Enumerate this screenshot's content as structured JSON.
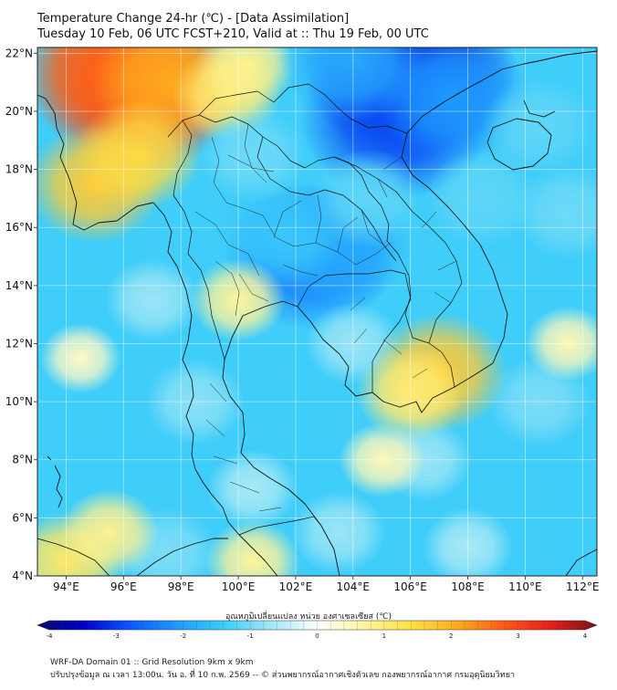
{
  "header": {
    "title_line1": "Temperature Change 24-hr (℃) - [Data Assimilation]",
    "title_line2": "Tuesday 10 Feb, 06 UTC FCST+210, Valid at :: Thu 19 Feb, 00 UTC"
  },
  "map": {
    "lon_range": [
      93,
      112.5
    ],
    "lat_range": [
      4,
      22.2
    ],
    "lon_ticks": [
      {
        "value": 94,
        "label": "94°E"
      },
      {
        "value": 96,
        "label": "96°E"
      },
      {
        "value": 98,
        "label": "98°E"
      },
      {
        "value": 100,
        "label": "100°E"
      },
      {
        "value": 102,
        "label": "102°E"
      },
      {
        "value": 104,
        "label": "104°E"
      },
      {
        "value": 106,
        "label": "106°E"
      },
      {
        "value": 108,
        "label": "108°E"
      },
      {
        "value": 110,
        "label": "110°E"
      },
      {
        "value": 112,
        "label": "112°E"
      }
    ],
    "lat_ticks": [
      {
        "value": 4,
        "label": "4°N"
      },
      {
        "value": 6,
        "label": "6°N"
      },
      {
        "value": 8,
        "label": "8°N"
      },
      {
        "value": 10,
        "label": "10°N"
      },
      {
        "value": 12,
        "label": "12°N"
      },
      {
        "value": 14,
        "label": "14°N"
      },
      {
        "value": 16,
        "label": "16°N"
      },
      {
        "value": 18,
        "label": "18°N"
      },
      {
        "value": 20,
        "label": "20°N"
      },
      {
        "value": 22,
        "label": "22°N"
      }
    ],
    "field_blobs": [
      {
        "lon": 96.5,
        "lat": 20.8,
        "value": 3.0
      },
      {
        "lon": 95.5,
        "lat": 21.5,
        "value": 2.6
      },
      {
        "lon": 97.6,
        "lat": 21.0,
        "value": 2.0
      },
      {
        "lon": 95.0,
        "lat": 17.5,
        "value": 1.6
      },
      {
        "lon": 96.5,
        "lat": 18.5,
        "value": 1.4
      },
      {
        "lon": 99.6,
        "lat": 20.6,
        "value": 1.0
      },
      {
        "lon": 100.3,
        "lat": 21.6,
        "value": 0.8
      },
      {
        "lon": 106.0,
        "lat": 21.5,
        "value": -3.2
      },
      {
        "lon": 105.5,
        "lat": 19.8,
        "value": -2.8
      },
      {
        "lon": 107.5,
        "lat": 20.5,
        "value": -2.0
      },
      {
        "lon": 104.0,
        "lat": 21.8,
        "value": -1.8
      },
      {
        "lon": 102.5,
        "lat": 15.0,
        "value": -2.3
      },
      {
        "lon": 103.5,
        "lat": 15.4,
        "value": -1.8
      },
      {
        "lon": 101.5,
        "lat": 15.8,
        "value": -1.4
      },
      {
        "lon": 100.5,
        "lat": 18.5,
        "value": -1.0
      },
      {
        "lon": 104.5,
        "lat": 17.0,
        "value": -1.1
      },
      {
        "lon": 108.5,
        "lat": 17.0,
        "value": -1.1
      },
      {
        "lon": 110.5,
        "lat": 19.5,
        "value": -1.1
      },
      {
        "lon": 111.5,
        "lat": 16.5,
        "value": -1.0
      },
      {
        "lon": 98.5,
        "lat": 10.0,
        "value": -0.8
      },
      {
        "lon": 97.0,
        "lat": 13.5,
        "value": -0.7
      },
      {
        "lon": 104.0,
        "lat": 12.0,
        "value": -0.7
      },
      {
        "lon": 106.5,
        "lat": 8.0,
        "value": -0.7
      },
      {
        "lon": 110.5,
        "lat": 10.0,
        "value": -0.9
      },
      {
        "lon": 97.5,
        "lat": 4.8,
        "value": -0.9
      },
      {
        "lon": 103.5,
        "lat": 5.5,
        "value": -0.7
      },
      {
        "lon": 100.5,
        "lat": 7.0,
        "value": -0.6
      },
      {
        "lon": 107.0,
        "lat": 11.0,
        "value": 1.6
      },
      {
        "lon": 106.0,
        "lat": 10.3,
        "value": 1.0
      },
      {
        "lon": 100.0,
        "lat": 13.5,
        "value": 0.7
      },
      {
        "lon": 94.0,
        "lat": 4.5,
        "value": 1.1
      },
      {
        "lon": 95.5,
        "lat": 5.5,
        "value": 0.8
      },
      {
        "lon": 100.5,
        "lat": 4.5,
        "value": 0.7
      },
      {
        "lon": 111.5,
        "lat": 12.0,
        "value": 0.5
      },
      {
        "lon": 105.0,
        "lat": 8.0,
        "value": 0.5
      },
      {
        "lon": 108.0,
        "lat": 5.0,
        "value": -0.6
      },
      {
        "lon": 94.5,
        "lat": 11.5,
        "value": 0.4
      }
    ]
  },
  "colorbar": {
    "title": "อุณหภูมิเปลี่ยนแปลง หน่วย องศาเซลเซียส (℃)",
    "min": -4,
    "max": 4,
    "ticks": [
      {
        "value": -4,
        "label": "-4"
      },
      {
        "value": -3,
        "label": "-3"
      },
      {
        "value": -2,
        "label": "-2"
      },
      {
        "value": -1,
        "label": "-1"
      },
      {
        "value": 0,
        "label": "0"
      },
      {
        "value": 1,
        "label": "1"
      },
      {
        "value": 2,
        "label": "2"
      },
      {
        "value": 3,
        "label": "3"
      },
      {
        "value": 4,
        "label": "4"
      }
    ],
    "colors": [
      "#0a0a6e",
      "#0000c8",
      "#0a5aff",
      "#1e9bff",
      "#3ccdfa",
      "#a0e6f5",
      "#ffffff",
      "#fff5a0",
      "#ffe146",
      "#ffaa1e",
      "#ff5a14",
      "#e61e1e",
      "#781414"
    ]
  },
  "footer": {
    "line1": "WRF-DA Domain 01 :: Grid Resolution 9km x 9km",
    "line2": "ปรับปรุงข้อมูล ณ เวลา 13:00น. วัน อ. ที่ 10 ก.พ. 2569 -- © ส่วนพยากรณ์อากาศเชิงตัวเลข กองพยากรณ์อากาศ กรมอุตุนิยมวิทยา"
  }
}
